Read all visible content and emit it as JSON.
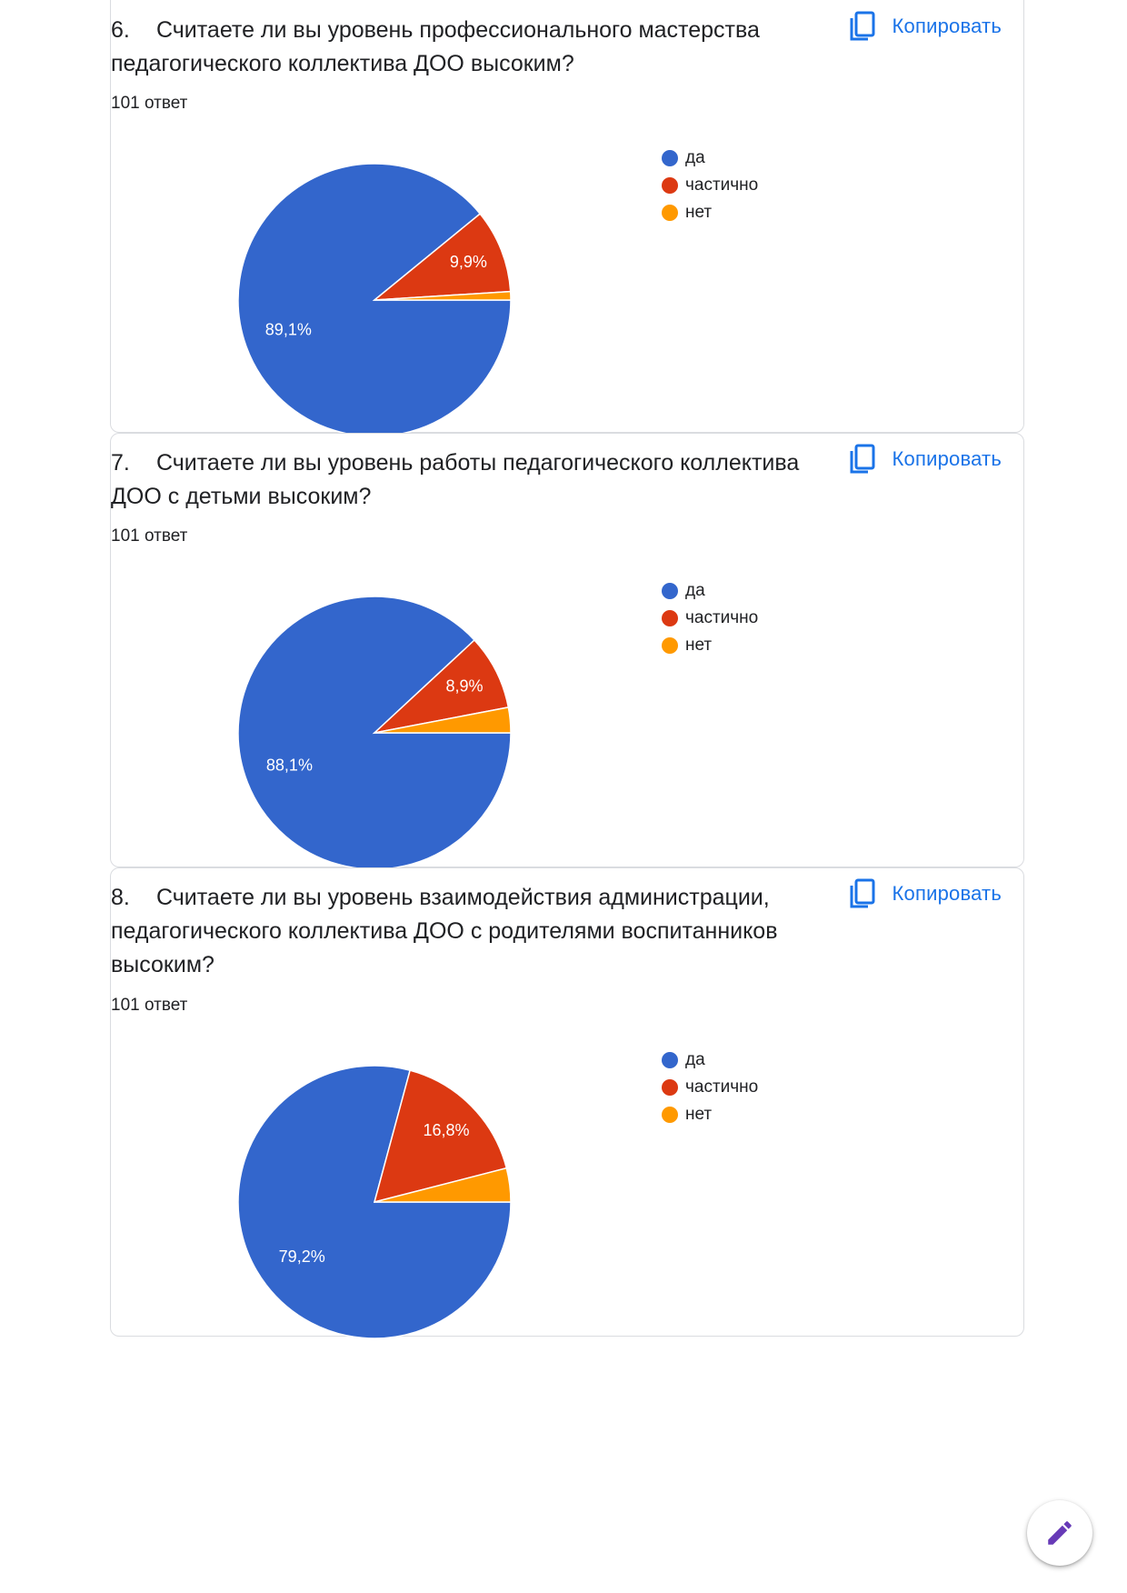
{
  "copy_label": "Копировать",
  "colors": {
    "da": "#3366cc",
    "chastichno": "#dc3912",
    "net": "#ff9900",
    "accent": "#1a73e8",
    "edit_icon": "#673ab7"
  },
  "icons": {
    "copy": "copy-icon",
    "edit": "pencil-icon"
  },
  "questions": [
    {
      "number": "6.",
      "title": "Считаете ли вы уровень профессионального мастерства педагогического коллектива ДОО высоким?",
      "responses": "101 ответ"
    },
    {
      "number": "7.",
      "title": "Считаете ли вы уровень работы педагогического коллектива ДОО с детьми высоким?",
      "responses": "101 ответ"
    },
    {
      "number": "8.",
      "title": "Считаете ли вы уровень взаимодействия администрации, педагогического коллектива ДОО с родителями воспитанников высоким?",
      "responses": "101 ответ"
    }
  ],
  "chart_data": [
    {
      "type": "pie",
      "categories": [
        "да",
        "частично",
        "нет"
      ],
      "values": [
        89.1,
        9.9,
        1.0
      ],
      "data_labels": [
        "89,1%",
        "9,9%",
        ""
      ],
      "legend": "right"
    },
    {
      "type": "pie",
      "categories": [
        "да",
        "частично",
        "нет"
      ],
      "values": [
        88.1,
        8.9,
        3.0
      ],
      "data_labels": [
        "88,1%",
        "8,9%",
        ""
      ],
      "legend": "right"
    },
    {
      "type": "pie",
      "categories": [
        "да",
        "частично",
        "нет"
      ],
      "values": [
        79.2,
        16.8,
        4.0
      ],
      "data_labels": [
        "79,2%",
        "16,8%",
        ""
      ],
      "legend": "right"
    }
  ]
}
